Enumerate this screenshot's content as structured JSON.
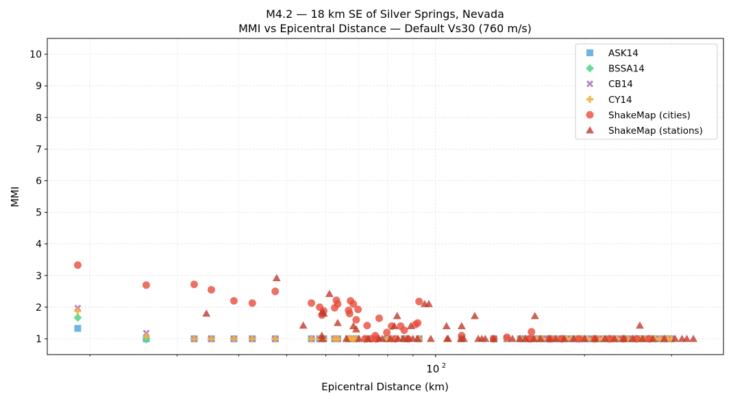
{
  "chart_data": {
    "type": "scatter",
    "title": "M4.2 — 18 km SE of Silver Springs, Nevada",
    "subtitle": "MMI vs Epicentral Distance — Default Vs30 (760 m/s)",
    "xlabel": "Epicentral Distance (km)",
    "ylabel": "MMI",
    "xscale": "log",
    "xlim": [
      16.4,
      382
    ],
    "ylim": [
      0.5,
      10.5
    ],
    "x_tick_labels": [
      {
        "value": 100,
        "base": "10",
        "exp": "2"
      }
    ],
    "y_ticks": [
      1,
      2,
      3,
      4,
      5,
      6,
      7,
      8,
      9,
      10
    ],
    "grid": true,
    "legend_position": "top-right",
    "model_distances": [
      18.9,
      26.0,
      32.5,
      35.2,
      39.1,
      42.6,
      47.4,
      56.1,
      58.3,
      59.4,
      62.5,
      63.4,
      66.7,
      67.3,
      68.2,
      69.1,
      72.7,
      75.5,
      79.7,
      81.5,
      86.4,
      92.6,
      112.9,
      131.2,
      139.4,
      148.5,
      152,
      156.3,
      160,
      164,
      168.8,
      172,
      176,
      179.9,
      184,
      188,
      193,
      198,
      203,
      208,
      213,
      217.9,
      223,
      228,
      232.3,
      238,
      244,
      250,
      255,
      260,
      266,
      272.4,
      278,
      284,
      290,
      295,
      299.8
    ],
    "series": [
      {
        "name": "ASK14",
        "marker": "square",
        "color": "#5DADE2",
        "first_values": [
          1.33,
          1.0
        ],
        "rest_value": 1.0
      },
      {
        "name": "BSSA14",
        "marker": "diamond",
        "color": "#58D68D",
        "first_values": [
          1.67,
          0.98
        ],
        "rest_value": 1.0
      },
      {
        "name": "CB14",
        "marker": "x",
        "color": "#AF7AC5",
        "first_values": [
          1.97,
          1.18
        ],
        "rest_value": 1.0
      },
      {
        "name": "CY14",
        "marker": "plus",
        "color": "#F5B041",
        "first_values": [
          1.88,
          1.08
        ],
        "rest_value": 1.0
      },
      {
        "name": "ShakeMap (cities)",
        "marker": "circle",
        "color": "#E74C3C",
        "points": [
          [
            18.9,
            3.33
          ],
          [
            26.0,
            2.7
          ],
          [
            32.5,
            2.72
          ],
          [
            35.2,
            2.55
          ],
          [
            39.1,
            2.2
          ],
          [
            42.6,
            2.13
          ],
          [
            47.4,
            2.5
          ],
          [
            56.1,
            2.13
          ],
          [
            58.3,
            2.0
          ],
          [
            58.9,
            1.75
          ],
          [
            59.4,
            1.88
          ],
          [
            62.5,
            1.98
          ],
          [
            63.0,
            2.22
          ],
          [
            63.4,
            2.1
          ],
          [
            66.7,
            1.9
          ],
          [
            67.3,
            2.2
          ],
          [
            67.0,
            1.8
          ],
          [
            68.2,
            2.1
          ],
          [
            69.1,
            1.6
          ],
          [
            69.7,
            1.93
          ],
          [
            76.9,
            1.65
          ],
          [
            72.7,
            1.42
          ],
          [
            75.5,
            1.1
          ],
          [
            79.7,
            1.2
          ],
          [
            81.5,
            1.4
          ],
          [
            85.0,
            1.4
          ],
          [
            86.4,
            1.27
          ],
          [
            92.6,
            2.18
          ],
          [
            92.0,
            1.5
          ],
          [
            91.0,
            1.45
          ],
          [
            74.0,
            1.0
          ],
          [
            112.9,
            1.1
          ],
          [
            139.4,
            1.05
          ],
          [
            156.3,
            1.22
          ],
          [
            155,
            1.0
          ],
          [
            72,
            1.0
          ],
          [
            76,
            1.0
          ],
          [
            83,
            1.0
          ],
          [
            88,
            1.0
          ],
          [
            131,
            1.0
          ],
          [
            170,
            1.0
          ],
          [
            180,
            1.0
          ],
          [
            195,
            1.0
          ],
          [
            210,
            1.0
          ],
          [
            225,
            1.0
          ],
          [
            240,
            1.0
          ],
          [
            255,
            1.0
          ],
          [
            270,
            1.0
          ]
        ]
      },
      {
        "name": "ShakeMap (stations)",
        "marker": "triangle",
        "color": "#C0392B",
        "points": [
          [
            34.4,
            1.8
          ],
          [
            47.7,
            2.92
          ],
          [
            54.0,
            1.42
          ],
          [
            58.9,
            1.1
          ],
          [
            59.4,
            1.8
          ],
          [
            59.0,
            1.85
          ],
          [
            61.0,
            2.42
          ],
          [
            63.4,
            1.5
          ],
          [
            68.2,
            1.4
          ],
          [
            69.1,
            1.3
          ],
          [
            76.9,
            1.0
          ],
          [
            83.6,
            1.72
          ],
          [
            82.5,
            1.4
          ],
          [
            89.1,
            1.4
          ],
          [
            95.0,
            2.1
          ],
          [
            96.9,
            2.1
          ],
          [
            105.2,
            1.4
          ],
          [
            112.9,
            1.4
          ],
          [
            120.0,
            1.72
          ],
          [
            158.8,
            1.72
          ],
          [
            258.8,
            1.42
          ],
          [
            59.0,
            1.0
          ],
          [
            66,
            1.0
          ],
          [
            70,
            1.0
          ],
          [
            73,
            1.0
          ],
          [
            78,
            1.0
          ],
          [
            81,
            1.0
          ],
          [
            84,
            1.0
          ],
          [
            86,
            1.0
          ],
          [
            88,
            1.0
          ],
          [
            90,
            1.0
          ],
          [
            92,
            1.0
          ],
          [
            97.8,
            1.0
          ],
          [
            105.5,
            1.0
          ],
          [
            106,
            1.0
          ],
          [
            112.5,
            1.0
          ],
          [
            114,
            1.0
          ],
          [
            122,
            1.0
          ],
          [
            124,
            1.0
          ],
          [
            126,
            1.0
          ],
          [
            131,
            1.0
          ],
          [
            143,
            1.0
          ],
          [
            148,
            1.0
          ],
          [
            152,
            1.0
          ],
          [
            158,
            1.0
          ],
          [
            163,
            1.0
          ],
          [
            170,
            1.0
          ],
          [
            175,
            1.0
          ],
          [
            182,
            1.0
          ],
          [
            190,
            1.0
          ],
          [
            200,
            1.0
          ],
          [
            210,
            1.0
          ],
          [
            220,
            1.0
          ],
          [
            230,
            1.0
          ],
          [
            240,
            1.0
          ],
          [
            250,
            1.0
          ],
          [
            262,
            1.0
          ],
          [
            275,
            1.0
          ],
          [
            290,
            1.0
          ],
          [
            305,
            1.0
          ],
          [
            315,
            1.0
          ],
          [
            322,
            1.0
          ],
          [
            332,
            1.0
          ]
        ]
      }
    ]
  }
}
